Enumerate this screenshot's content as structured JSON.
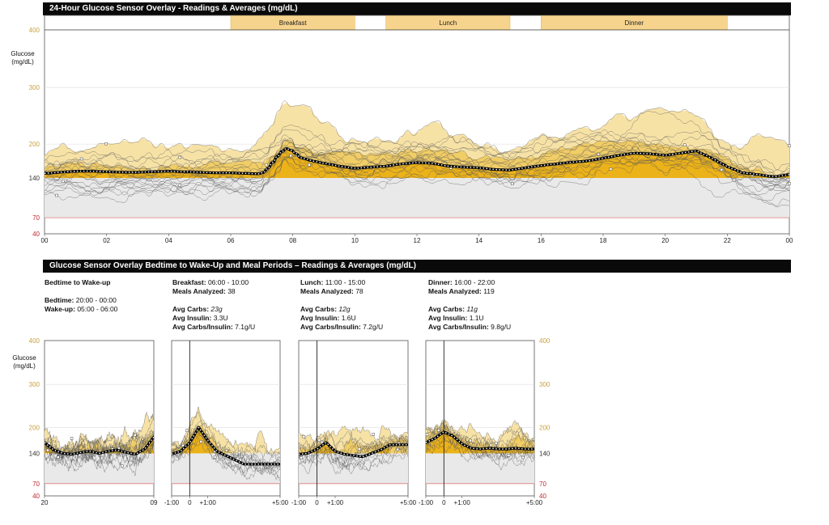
{
  "colors": {
    "high_fill": "#ecb219",
    "high_light": "#f7e2a6",
    "in_range": "#e9e9e9",
    "low_fill": "#f0b9bc",
    "low_line": "#e07a7e",
    "axis_high": "#c8a23a",
    "axis_low": "#c0282e",
    "header_bg": "#0a0a0a"
  },
  "top_chart": {
    "title": "24-Hour Glucose Sensor Overlay - Readings & Averages (mg/dL)",
    "ylabel": "Glucose (mg/dL)",
    "meal_bands": [
      {
        "label": "Breakfast",
        "start": 6,
        "end": 10
      },
      {
        "label": "Lunch",
        "start": 11,
        "end": 15
      },
      {
        "label": "Dinner",
        "start": 16,
        "end": 22
      }
    ]
  },
  "bottom_section": {
    "title": "Glucose Sensor Overlay Bedtime to Wake-Up and Meal Periods – Readings & Averages (mg/dL)",
    "ylabel": "Glucose (mg/dL)",
    "panels": [
      {
        "heading": "Bedtime to Wake-up",
        "lines": [
          {
            "label": "Bedtime:",
            "value": "20:00 - 00:00"
          },
          {
            "label": "Wake-up:",
            "value": "05:00 - 06:00"
          }
        ]
      },
      {
        "heading": "Breakfast:",
        "heading_value": "06:00 - 10:00",
        "meals_label": "Meals Analyzed:",
        "meals": "38",
        "avg_carbs_label": "Avg Carbs:",
        "avg_carbs": "23g",
        "avg_insulin_label": "Avg Insulin:",
        "avg_insulin": "3.3U",
        "ratio_label": "Avg Carbs/Insulin:",
        "ratio": "7.1g/U"
      },
      {
        "heading": "Lunch:",
        "heading_value": "11:00 - 15:00",
        "meals_label": "Meals Analyzed:",
        "meals": "78",
        "avg_carbs_label": "Avg Carbs:",
        "avg_carbs": "12g",
        "avg_insulin_label": "Avg Insulin:",
        "avg_insulin": "1.6U",
        "ratio_label": "Avg Carbs/Insulin:",
        "ratio": "7.2g/U"
      },
      {
        "heading": "Dinner:",
        "heading_value": "16:00 - 22:00",
        "meals_label": "Meals Analyzed:",
        "meals": "119",
        "avg_carbs_label": "Avg Carbs:",
        "avg_carbs": "11g",
        "avg_insulin_label": "Avg Insulin:",
        "avg_insulin": "1.1U",
        "ratio_label": "Avg Carbs/Insulin:",
        "ratio": "9.8g/U"
      }
    ]
  },
  "chart_data": [
    {
      "type": "line",
      "title": "24-Hour Glucose Sensor Overlay - Readings & Averages (mg/dL)",
      "xlabel": "",
      "ylabel": "Glucose (mg/dL)",
      "x_ticks": [
        "00",
        "02",
        "04",
        "06",
        "08",
        "10",
        "12",
        "14",
        "16",
        "18",
        "20",
        "22",
        "00"
      ],
      "y_ticks": [
        40,
        70,
        140,
        200,
        300,
        400
      ],
      "xlim": [
        0,
        24
      ],
      "ylim": [
        40,
        400
      ],
      "target_range": [
        70,
        140
      ],
      "series": [
        {
          "name": "Average",
          "x": [
            0,
            0.5,
            1,
            1.5,
            2,
            2.5,
            3,
            3.5,
            4,
            4.5,
            5,
            5.5,
            6,
            6.5,
            7,
            7.25,
            7.5,
            7.75,
            8,
            8.25,
            8.5,
            8.75,
            9,
            9.5,
            10,
            10.5,
            11,
            11.5,
            12,
            12.5,
            13,
            13.5,
            14,
            14.5,
            15,
            15.5,
            16,
            16.5,
            17,
            17.5,
            18,
            18.5,
            19,
            19.5,
            20,
            20.5,
            21,
            21.5,
            22,
            22.5,
            23,
            23.5,
            24
          ],
          "y": [
            148,
            150,
            152,
            152,
            151,
            150,
            150,
            151,
            152,
            151,
            150,
            149,
            149,
            148,
            147,
            160,
            178,
            193,
            188,
            176,
            172,
            169,
            166,
            161,
            157,
            159,
            161,
            165,
            167,
            166,
            161,
            159,
            158,
            155,
            154,
            158,
            162,
            165,
            168,
            170,
            175,
            180,
            184,
            183,
            180,
            184,
            188,
            175,
            160,
            149,
            146,
            142,
            146
          ]
        }
      ]
    },
    {
      "type": "line",
      "title": "Bedtime to Wake-up",
      "x_ticks": [
        "20",
        "09"
      ],
      "y_ticks": [
        40,
        70,
        140,
        200,
        300,
        400
      ],
      "ylim": [
        40,
        400
      ],
      "series": [
        {
          "name": "Average",
          "x": [
            0,
            1,
            2,
            3,
            4,
            5,
            6,
            7,
            8,
            9,
            10,
            11,
            12
          ],
          "y": [
            165,
            148,
            140,
            138,
            142,
            145,
            140,
            145,
            148,
            142,
            138,
            150,
            178
          ]
        }
      ]
    },
    {
      "type": "line",
      "title": "Breakfast",
      "x_ticks": [
        "-1:00",
        "0",
        "+1:00",
        "+5:00"
      ],
      "y_ticks": [
        40,
        70,
        140,
        200,
        300,
        400
      ],
      "ylim": [
        40,
        400
      ],
      "series": [
        {
          "name": "Average",
          "x": [
            -1,
            -0.5,
            0,
            0.5,
            1,
            1.5,
            2,
            2.5,
            3
          ],
          "y": [
            138,
            145,
            165,
            200,
            170,
            145,
            135,
            125,
            115
          ]
        }
      ]
    },
    {
      "type": "line",
      "title": "Lunch",
      "x_ticks": [
        "-1:00",
        "0",
        "+1:00",
        "+5:00"
      ],
      "y_ticks": [
        40,
        70,
        140,
        200,
        300,
        400
      ],
      "ylim": [
        40,
        400
      ],
      "series": [
        {
          "name": "Average",
          "x": [
            -1,
            -0.5,
            0,
            0.5,
            1,
            1.5,
            2,
            2.5,
            3,
            3.5,
            4
          ],
          "y": [
            138,
            140,
            150,
            165,
            145,
            138,
            135,
            132,
            140,
            148,
            160
          ]
        }
      ]
    },
    {
      "type": "line",
      "title": "Dinner",
      "x_ticks": [
        "-1:00",
        "0",
        "+1:00",
        "+5:00"
      ],
      "y_ticks": [
        40,
        70,
        140,
        200,
        300,
        400
      ],
      "ylim": [
        40,
        400
      ],
      "series": [
        {
          "name": "Average",
          "x": [
            -1,
            -0.5,
            0,
            0.5,
            1,
            1.5,
            2,
            2.5,
            3,
            3.5,
            4,
            4.5,
            5
          ],
          "y": [
            165,
            175,
            190,
            180,
            162,
            152,
            150,
            152,
            150,
            150,
            152,
            150,
            150
          ]
        }
      ]
    }
  ]
}
